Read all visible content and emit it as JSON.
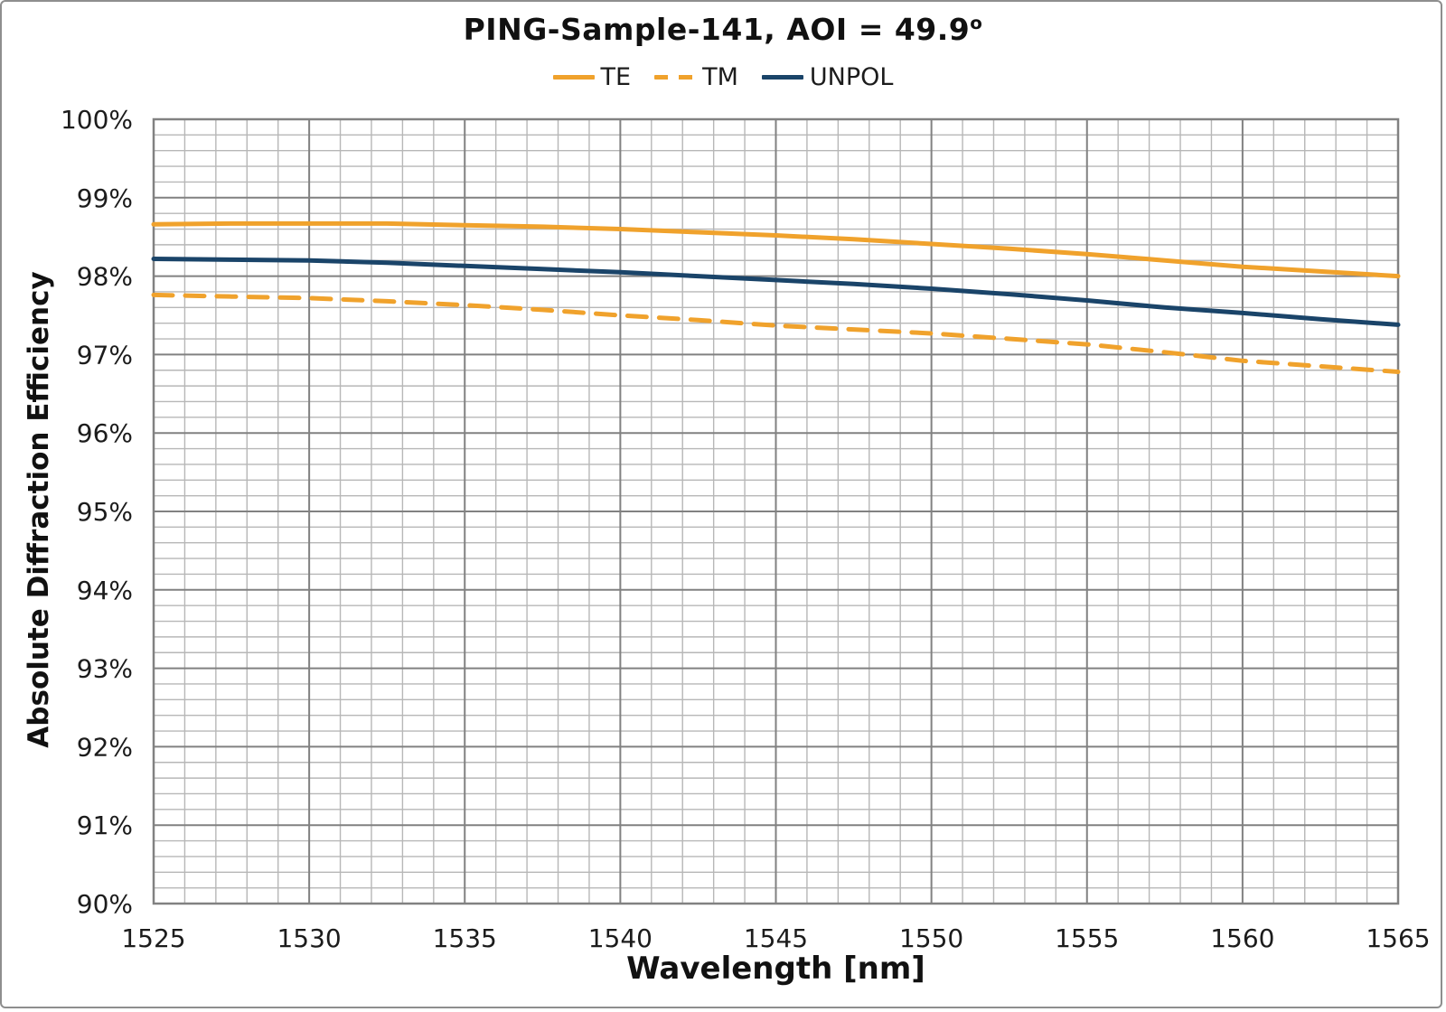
{
  "frame": {
    "background": "#ffffff",
    "border_color": "#8e8e8e"
  },
  "chart_data": {
    "type": "line",
    "title": "PING-Sample-141, AOI = 49.9",
    "title_superscript": "o",
    "xlabel": "Wavelength [nm]",
    "ylabel": "Absolute Diffraction Efficiency",
    "xlim": [
      1525,
      1565
    ],
    "ylim": [
      90,
      100
    ],
    "x_major_step": 5,
    "x_minor_step": 1,
    "y_major_step": 1,
    "y_minor_step": 0.2,
    "grid": {
      "on": true,
      "minor_color": "#b7b7b7",
      "major_color": "#818181",
      "border_color": "#818181"
    },
    "x_ticks": [
      "1525",
      "1530",
      "1535",
      "1540",
      "1545",
      "1550",
      "1555",
      "1560",
      "1565"
    ],
    "y_ticks": [
      "100%",
      "99%",
      "98%",
      "97%",
      "96%",
      "95%",
      "94%",
      "93%",
      "92%",
      "91%",
      "90%"
    ],
    "tick_color": "#1c1c1c",
    "legend": {
      "position": "top-center",
      "entries": [
        {
          "label": "TE",
          "color": "#F0A22C",
          "dash": "solid"
        },
        {
          "label": "TM",
          "color": "#F0A22C",
          "dash": "dashed"
        },
        {
          "label": "UNPOL",
          "color": "#1A4469",
          "dash": "solid"
        }
      ]
    },
    "x": [
      1525,
      1527.5,
      1530,
      1532.5,
      1535,
      1537.5,
      1540,
      1542.5,
      1545,
      1547.5,
      1550,
      1552.5,
      1555,
      1557.5,
      1560,
      1562.5,
      1565
    ],
    "series": [
      {
        "name": "TE",
        "color": "#F0A22C",
        "style": "solid",
        "values": [
          98.66,
          98.67,
          98.67,
          98.67,
          98.65,
          98.63,
          98.6,
          98.56,
          98.52,
          98.47,
          98.41,
          98.35,
          98.28,
          98.2,
          98.12,
          98.06,
          98.0
        ]
      },
      {
        "name": "TM",
        "color": "#F0A22C",
        "style": "dashed",
        "values": [
          97.76,
          97.74,
          97.72,
          97.68,
          97.63,
          97.57,
          97.5,
          97.44,
          97.37,
          97.32,
          97.27,
          97.2,
          97.13,
          97.03,
          96.92,
          96.85,
          96.78
        ]
      },
      {
        "name": "UNPOL",
        "color": "#1A4469",
        "style": "solid",
        "values": [
          98.22,
          98.21,
          98.2,
          98.17,
          98.13,
          98.09,
          98.05,
          98.0,
          97.95,
          97.9,
          97.84,
          97.77,
          97.69,
          97.6,
          97.53,
          97.45,
          97.38
        ]
      }
    ]
  }
}
